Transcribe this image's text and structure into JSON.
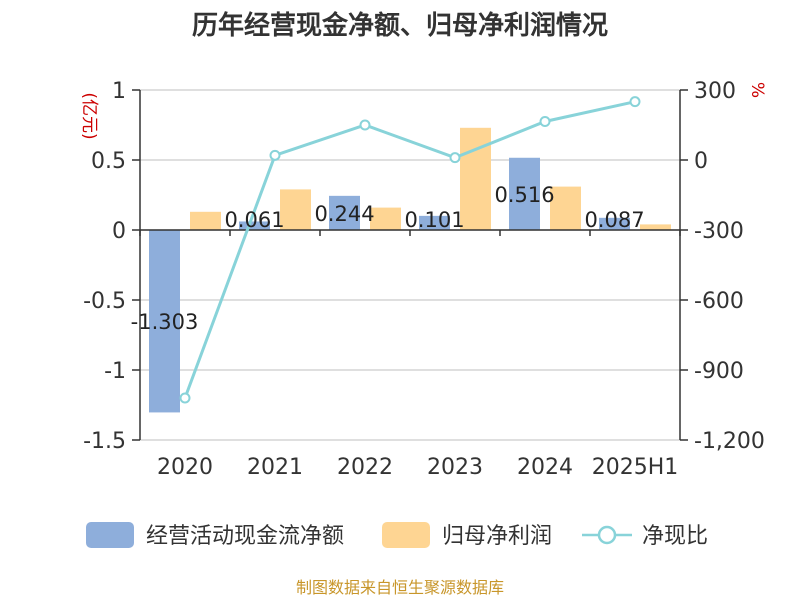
{
  "chart_data": {
    "type": "bar",
    "title": "历年经营现金净额、归母净利润情况",
    "categories": [
      "2020",
      "2021",
      "2022",
      "2023",
      "2024",
      "2025H1"
    ],
    "series": [
      {
        "name": "经营活动现金流净额",
        "type": "bar",
        "axis": "left",
        "color": "#8eaedb",
        "values": [
          -1.303,
          0.061,
          0.244,
          0.101,
          0.516,
          0.087
        ],
        "labels": [
          "-1.303",
          "0.061",
          "0.244",
          "0.101",
          "0.516",
          "0.087"
        ]
      },
      {
        "name": "归母净利润",
        "type": "bar",
        "axis": "left",
        "color": "#fed593",
        "values": [
          0.13,
          0.29,
          0.16,
          0.73,
          0.31,
          0.04
        ]
      },
      {
        "name": "净现比",
        "type": "line",
        "axis": "right",
        "color": "#88d3d9",
        "values": [
          -1020,
          20,
          150,
          10,
          165,
          250
        ]
      }
    ],
    "y_left": {
      "unit": "(亿元)",
      "min": -1.5,
      "max": 1,
      "ticks": [
        1,
        0.5,
        0,
        -0.5,
        -1,
        -1.5
      ],
      "tick_labels": [
        "1",
        "0.5",
        "0",
        "-0.5",
        "-1",
        "-1.5"
      ]
    },
    "y_right": {
      "unit": "%",
      "min": -1200,
      "max": 300,
      "ticks": [
        300,
        0,
        -300,
        -600,
        -900,
        -1200
      ],
      "tick_labels": [
        "300",
        "0",
        "-300",
        "-600",
        "-900",
        "-1,200"
      ]
    },
    "grid": true,
    "legend_position": "bottom"
  },
  "source": "制图数据来自恒生聚源数据库"
}
